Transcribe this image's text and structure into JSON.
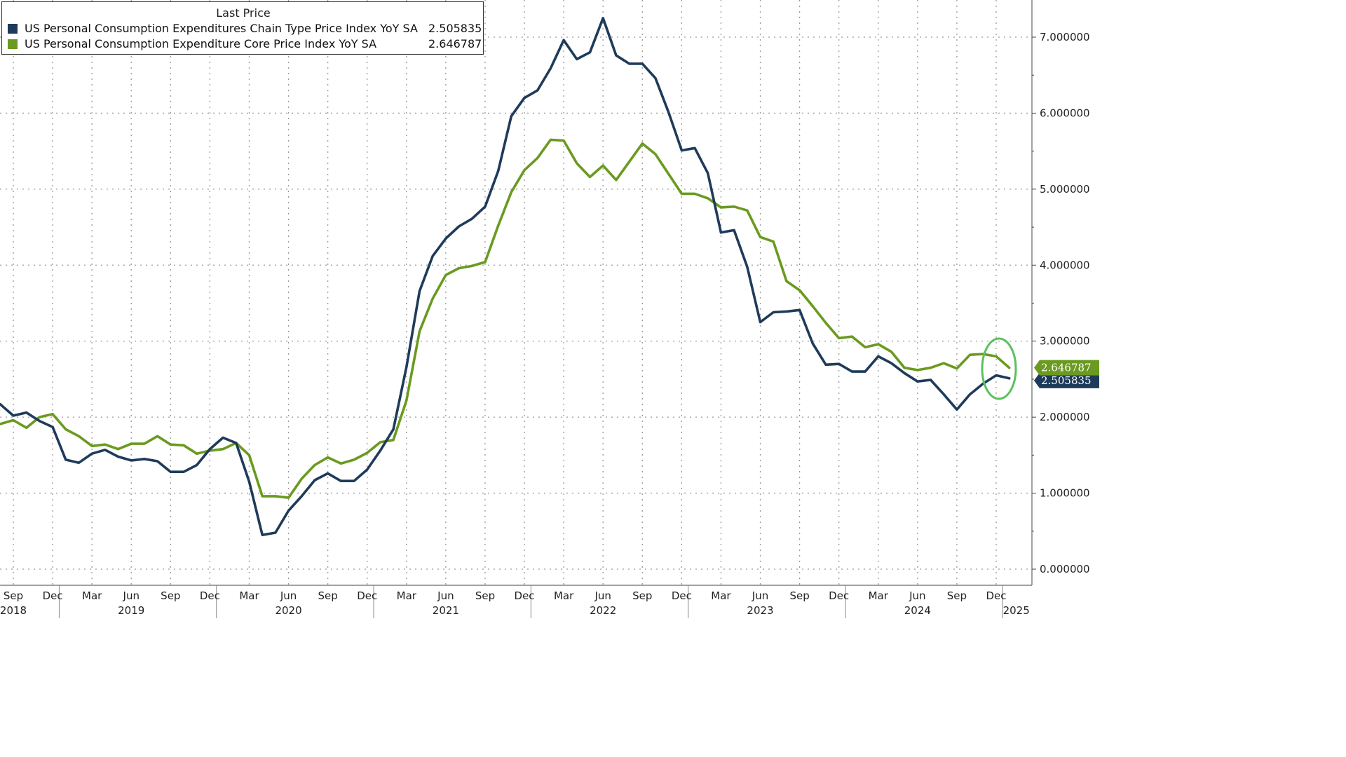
{
  "colors": {
    "pce": "#1f3b5a",
    "core": "#6a9a1f",
    "grid": "#999999",
    "highlight": "#5cc05c"
  },
  "legend": {
    "title": "Last Price",
    "items": [
      {
        "name": "US Personal Consumption Expenditures Chain Type Price Index YoY SA",
        "value": "2.505835"
      },
      {
        "name": "US Personal Consumption Expenditure Core Price Index YoY SA",
        "value": "2.646787"
      }
    ]
  },
  "chart_data": {
    "type": "line",
    "xlabel": "",
    "ylabel": "",
    "ylim": [
      -0.15,
      7.5
    ],
    "grid": true,
    "legend_position": "top-left",
    "yticks": [
      {
        "v": 0,
        "label": "0.000000"
      },
      {
        "v": 1,
        "label": "1.000000"
      },
      {
        "v": 2,
        "label": "2.000000"
      },
      {
        "v": 3,
        "label": "3.000000"
      },
      {
        "v": 4,
        "label": "4.000000"
      },
      {
        "v": 5,
        "label": "5.000000"
      },
      {
        "v": 6,
        "label": "6.000000"
      },
      {
        "v": 7,
        "label": "7.000000"
      }
    ],
    "xlim": [
      "2018-09",
      "2025-02"
    ],
    "month_ticks": [
      {
        "date": "2018-09",
        "label": "Sep"
      },
      {
        "date": "2018-12",
        "label": "Dec"
      },
      {
        "date": "2019-03",
        "label": "Mar"
      },
      {
        "date": "2019-06",
        "label": "Jun"
      },
      {
        "date": "2019-09",
        "label": "Sep"
      },
      {
        "date": "2019-12",
        "label": "Dec"
      },
      {
        "date": "2020-03",
        "label": "Mar"
      },
      {
        "date": "2020-06",
        "label": "Jun"
      },
      {
        "date": "2020-09",
        "label": "Sep"
      },
      {
        "date": "2020-12",
        "label": "Dec"
      },
      {
        "date": "2021-03",
        "label": "Mar"
      },
      {
        "date": "2021-06",
        "label": "Jun"
      },
      {
        "date": "2021-09",
        "label": "Sep"
      },
      {
        "date": "2021-12",
        "label": "Dec"
      },
      {
        "date": "2022-03",
        "label": "Mar"
      },
      {
        "date": "2022-06",
        "label": "Jun"
      },
      {
        "date": "2022-09",
        "label": "Sep"
      },
      {
        "date": "2022-12",
        "label": "Dec"
      },
      {
        "date": "2023-03",
        "label": "Mar"
      },
      {
        "date": "2023-06",
        "label": "Jun"
      },
      {
        "date": "2023-09",
        "label": "Sep"
      },
      {
        "date": "2023-12",
        "label": "Dec"
      },
      {
        "date": "2024-03",
        "label": "Mar"
      },
      {
        "date": "2024-06",
        "label": "Jun"
      },
      {
        "date": "2024-09",
        "label": "Sep"
      },
      {
        "date": "2024-12",
        "label": "Dec"
      }
    ],
    "year_ticks": [
      {
        "date": "2018-09",
        "label": "2018"
      },
      {
        "date": "2019-06",
        "label": "2019"
      },
      {
        "date": "2020-06",
        "label": "2020"
      },
      {
        "date": "2021-06",
        "label": "2021"
      },
      {
        "date": "2022-06",
        "label": "2022"
      },
      {
        "date": "2023-06",
        "label": "2023"
      },
      {
        "date": "2024-06",
        "label": "2024"
      },
      {
        "date": "2025-01",
        "label": "2025"
      }
    ],
    "year_boundaries": [
      "2019-01",
      "2020-01",
      "2021-01",
      "2022-01",
      "2023-01",
      "2024-01",
      "2025-01"
    ],
    "x": [
      "2018-08",
      "2018-09",
      "2018-10",
      "2018-11",
      "2018-12",
      "2019-01",
      "2019-02",
      "2019-03",
      "2019-04",
      "2019-05",
      "2019-06",
      "2019-07",
      "2019-08",
      "2019-09",
      "2019-10",
      "2019-11",
      "2019-12",
      "2020-01",
      "2020-02",
      "2020-03",
      "2020-04",
      "2020-05",
      "2020-06",
      "2020-07",
      "2020-08",
      "2020-09",
      "2020-10",
      "2020-11",
      "2020-12",
      "2021-01",
      "2021-02",
      "2021-03",
      "2021-04",
      "2021-05",
      "2021-06",
      "2021-07",
      "2021-08",
      "2021-09",
      "2021-10",
      "2021-11",
      "2021-12",
      "2022-01",
      "2022-02",
      "2022-03",
      "2022-04",
      "2022-05",
      "2022-06",
      "2022-07",
      "2022-08",
      "2022-09",
      "2022-10",
      "2022-11",
      "2022-12",
      "2023-01",
      "2023-02",
      "2023-03",
      "2023-04",
      "2023-05",
      "2023-06",
      "2023-07",
      "2023-08",
      "2023-09",
      "2023-10",
      "2023-11",
      "2023-12",
      "2024-01",
      "2024-02",
      "2024-03",
      "2024-04",
      "2024-05",
      "2024-06",
      "2024-07",
      "2024-08",
      "2024-09",
      "2024-10",
      "2024-11",
      "2024-12",
      "2025-01"
    ],
    "series": [
      {
        "name": "US Personal Consumption Expenditures Chain Type Price Index YoY SA",
        "color": "#1f3b5a",
        "last_label": "2.505835",
        "values": [
          2.17,
          2.02,
          2.06,
          1.95,
          1.87,
          1.44,
          1.4,
          1.52,
          1.57,
          1.48,
          1.43,
          1.45,
          1.42,
          1.28,
          1.28,
          1.37,
          1.58,
          1.73,
          1.66,
          1.15,
          0.45,
          0.48,
          0.77,
          0.96,
          1.17,
          1.26,
          1.16,
          1.16,
          1.31,
          1.56,
          1.84,
          2.66,
          3.66,
          4.12,
          4.35,
          4.51,
          4.61,
          4.77,
          5.24,
          5.96,
          6.2,
          6.3,
          6.59,
          6.96,
          6.71,
          6.8,
          7.25,
          6.76,
          6.65,
          6.65,
          6.46,
          6.01,
          5.51,
          5.54,
          5.21,
          4.43,
          4.46,
          3.98,
          3.25,
          3.38,
          3.39,
          3.41,
          2.97,
          2.69,
          2.7,
          2.6,
          2.6,
          2.8,
          2.71,
          2.58,
          2.47,
          2.49,
          2.3,
          2.1,
          2.3,
          2.44,
          2.55,
          2.51
        ]
      },
      {
        "name": "US Personal Consumption Expenditure Core Price Index YoY SA",
        "color": "#6a9a1f",
        "last_label": "2.646787",
        "values": [
          1.91,
          1.96,
          1.86,
          2.0,
          2.04,
          1.84,
          1.75,
          1.62,
          1.64,
          1.58,
          1.65,
          1.65,
          1.75,
          1.64,
          1.63,
          1.52,
          1.56,
          1.58,
          1.66,
          1.5,
          0.96,
          0.96,
          0.94,
          1.19,
          1.37,
          1.47,
          1.39,
          1.44,
          1.53,
          1.67,
          1.7,
          2.22,
          3.13,
          3.56,
          3.87,
          3.96,
          3.99,
          4.04,
          4.52,
          4.96,
          5.25,
          5.41,
          5.65,
          5.64,
          5.34,
          5.16,
          5.31,
          5.12,
          5.36,
          5.6,
          5.46,
          5.2,
          4.94,
          4.94,
          4.88,
          4.76,
          4.77,
          4.72,
          4.37,
          4.31,
          3.79,
          3.67,
          3.46,
          3.24,
          3.04,
          3.06,
          2.92,
          2.96,
          2.86,
          2.65,
          2.62,
          2.65,
          2.71,
          2.64,
          2.82,
          2.83,
          2.8,
          2.65
        ]
      }
    ]
  }
}
